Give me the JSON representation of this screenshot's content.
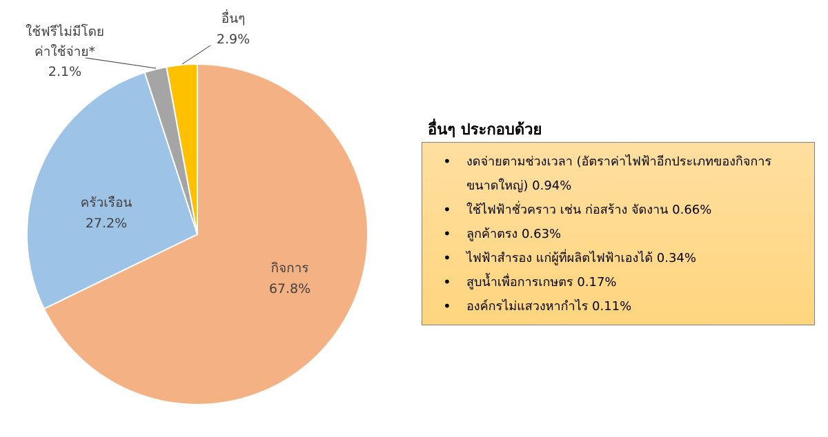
{
  "chart_data": {
    "type": "pie",
    "start_angle": "12 o'clock",
    "direction": "clockwise",
    "slices": [
      {
        "label": "กิจการ",
        "value": 67.8,
        "value_label": "67.8%",
        "color": "#F4B183"
      },
      {
        "label": "ครัวเรือน",
        "value": 27.2,
        "value_label": "27.2%",
        "color": "#9DC3E6"
      },
      {
        "label": "ใช้ฟรีไม่มีโดย ค่าใช้จ่าย*",
        "label_lines": [
          "ใช้ฟรีไม่มีโดย",
          "ค่าใช้จ่าย*"
        ],
        "value": 2.1,
        "value_label": "2.1%",
        "color": "#A5A5A5"
      },
      {
        "label": "อื่นๆ",
        "value": 2.9,
        "value_label": "2.9%",
        "color": "#FFC000"
      }
    ]
  },
  "others": {
    "title": "อื่นๆ ประกอบด้วย",
    "items": [
      "งดจ่ายตามช่วงเวลา (อัตราค่าไฟฟ้าอีกประเภทของกิจการขนาดใหญ่) 0.94%",
      "ใช้ไฟฟ้าชั่วคราว เช่น ก่อสร้าง จัดงาน 0.66%",
      "ลูกค้าตรง 0.63%",
      "ไฟฟ้าสำรอง แก่ผู้ที่ผลิตไฟฟ้าเองได้ 0.34%",
      "สูบน้ำเพื่อการเกษตร 0.17%",
      "องค์กรไม่แสวงหากำไร 0.11%"
    ]
  }
}
